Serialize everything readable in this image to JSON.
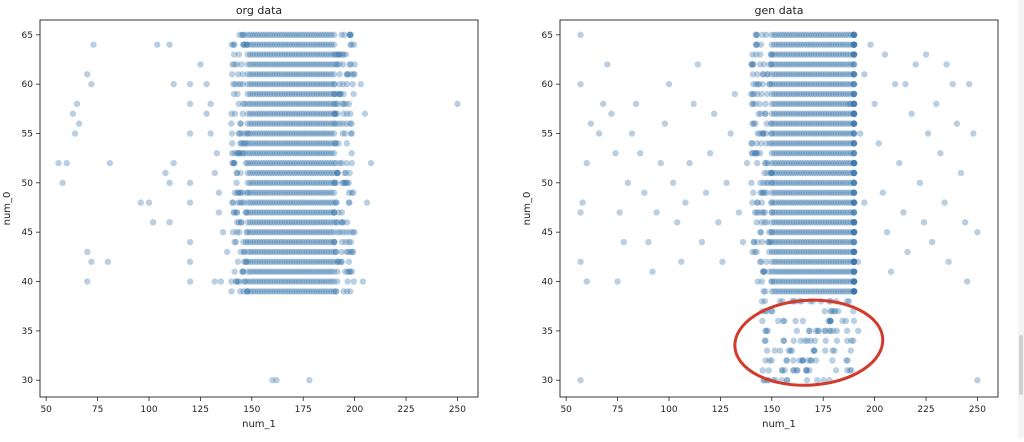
{
  "chart_data": [
    {
      "type": "scatter",
      "title": "org data",
      "xlabel": "num_1",
      "ylabel": "num_0",
      "xlim": [
        47,
        260
      ],
      "ylim": [
        28.3,
        66.5
      ],
      "xticks": [
        50,
        75,
        100,
        125,
        150,
        175,
        200,
        225,
        250
      ],
      "yticks": [
        30,
        35,
        40,
        45,
        50,
        55,
        60,
        65
      ],
      "grid": false,
      "color": "#3a75ad",
      "opacity": 0.35,
      "dense_region": {
        "x_range": [
          140,
          200
        ],
        "y_range": [
          39,
          65
        ],
        "core_x_range": [
          148,
          190
        ]
      },
      "points": [
        [
          56,
          52
        ],
        [
          58,
          50
        ],
        [
          60,
          52
        ],
        [
          63,
          57
        ],
        [
          64,
          55
        ],
        [
          65,
          58
        ],
        [
          66,
          56
        ],
        [
          70,
          61
        ],
        [
          72,
          60
        ],
        [
          70,
          43
        ],
        [
          72,
          42
        ],
        [
          80,
          42
        ],
        [
          70,
          40
        ],
        [
          81,
          52
        ],
        [
          73,
          64
        ],
        [
          96,
          48
        ],
        [
          100,
          48
        ],
        [
          102,
          46
        ],
        [
          104,
          64
        ],
        [
          110,
          64
        ],
        [
          108,
          51
        ],
        [
          110,
          50
        ],
        [
          110,
          46
        ],
        [
          112,
          52
        ],
        [
          112,
          60
        ],
        [
          120,
          60
        ],
        [
          120,
          58
        ],
        [
          120,
          55
        ],
        [
          120,
          50
        ],
        [
          120,
          48
        ],
        [
          120,
          44
        ],
        [
          120,
          42
        ],
        [
          120,
          40
        ],
        [
          125,
          62
        ],
        [
          128,
          60
        ],
        [
          128,
          57
        ],
        [
          130,
          58
        ],
        [
          130,
          55
        ],
        [
          132,
          51
        ],
        [
          133,
          53
        ],
        [
          134,
          49
        ],
        [
          134,
          47
        ],
        [
          136,
          45
        ],
        [
          138,
          43
        ],
        [
          132,
          40
        ],
        [
          135,
          40
        ],
        [
          160,
          30
        ],
        [
          162,
          30
        ],
        [
          178,
          30
        ],
        [
          250,
          58
        ],
        [
          208,
          52
        ],
        [
          206,
          48
        ],
        [
          205,
          57
        ],
        [
          200,
          45
        ],
        [
          198,
          43
        ],
        [
          200,
          62
        ],
        [
          203,
          60
        ],
        [
          198,
          64
        ],
        [
          204,
          40
        ]
      ]
    },
    {
      "type": "scatter",
      "title": "gen data",
      "xlabel": "num_1",
      "ylabel": "num_0",
      "xlim": [
        47,
        260
      ],
      "ylim": [
        28.3,
        66.5
      ],
      "xticks": [
        50,
        75,
        100,
        125,
        150,
        175,
        200,
        225,
        250
      ],
      "yticks": [
        30,
        35,
        40,
        45,
        50,
        55,
        60,
        65
      ],
      "grid": false,
      "color": "#3a75ad",
      "opacity": 0.35,
      "dense_region": {
        "x_range": [
          140,
          190
        ],
        "y_range": [
          39,
          65
        ],
        "core_x_range": [
          150,
          190
        ]
      },
      "low_cluster": {
        "x_range": [
          140,
          190
        ],
        "y_range": [
          30,
          38
        ]
      },
      "annotation_ellipse": {
        "center": [
          168,
          33.8
        ],
        "radius": [
          36,
          4.3
        ],
        "color": "#d23b2c"
      },
      "points": [
        [
          57,
          65
        ],
        [
          57,
          30
        ],
        [
          250,
          30
        ],
        [
          57,
          60
        ],
        [
          57,
          42
        ],
        [
          57,
          47
        ],
        [
          58,
          48
        ],
        [
          60,
          52
        ],
        [
          62,
          56
        ],
        [
          60,
          40
        ],
        [
          66,
          55
        ],
        [
          68,
          58
        ],
        [
          70,
          62
        ],
        [
          72,
          57
        ],
        [
          74,
          53
        ],
        [
          75,
          40
        ],
        [
          76,
          47
        ],
        [
          78,
          44
        ],
        [
          80,
          50
        ],
        [
          82,
          55
        ],
        [
          84,
          58
        ],
        [
          86,
          53
        ],
        [
          88,
          49
        ],
        [
          90,
          44
        ],
        [
          92,
          41
        ],
        [
          94,
          47
        ],
        [
          96,
          52
        ],
        [
          98,
          56
        ],
        [
          100,
          60
        ],
        [
          102,
          50
        ],
        [
          104,
          46
        ],
        [
          106,
          42
        ],
        [
          108,
          48
        ],
        [
          110,
          52
        ],
        [
          112,
          58
        ],
        [
          114,
          62
        ],
        [
          116,
          44
        ],
        [
          118,
          49
        ],
        [
          120,
          53
        ],
        [
          122,
          57
        ],
        [
          124,
          46
        ],
        [
          126,
          42
        ],
        [
          128,
          50
        ],
        [
          130,
          55
        ],
        [
          132,
          59
        ],
        [
          134,
          47
        ],
        [
          136,
          44
        ],
        [
          138,
          52
        ],
        [
          198,
          64
        ],
        [
          200,
          58
        ],
        [
          202,
          54
        ],
        [
          204,
          49
        ],
        [
          206,
          45
        ],
        [
          208,
          41
        ],
        [
          210,
          60
        ],
        [
          212,
          52
        ],
        [
          214,
          47
        ],
        [
          216,
          43
        ],
        [
          218,
          57
        ],
        [
          220,
          62
        ],
        [
          222,
          50
        ],
        [
          224,
          46
        ],
        [
          226,
          55
        ],
        [
          228,
          44
        ],
        [
          230,
          58
        ],
        [
          232,
          53
        ],
        [
          234,
          48
        ],
        [
          236,
          42
        ],
        [
          238,
          60
        ],
        [
          240,
          56
        ],
        [
          242,
          51
        ],
        [
          244,
          46
        ],
        [
          246,
          60
        ],
        [
          248,
          55
        ],
        [
          250,
          45
        ],
        [
          245,
          40
        ],
        [
          235,
          62
        ],
        [
          225,
          63
        ],
        [
          215,
          60
        ],
        [
          205,
          63
        ],
        [
          195,
          61
        ],
        [
          193,
          55
        ],
        [
          195,
          48
        ],
        [
          192,
          42
        ],
        [
          188,
          58
        ],
        [
          192,
          35
        ]
      ]
    }
  ]
}
